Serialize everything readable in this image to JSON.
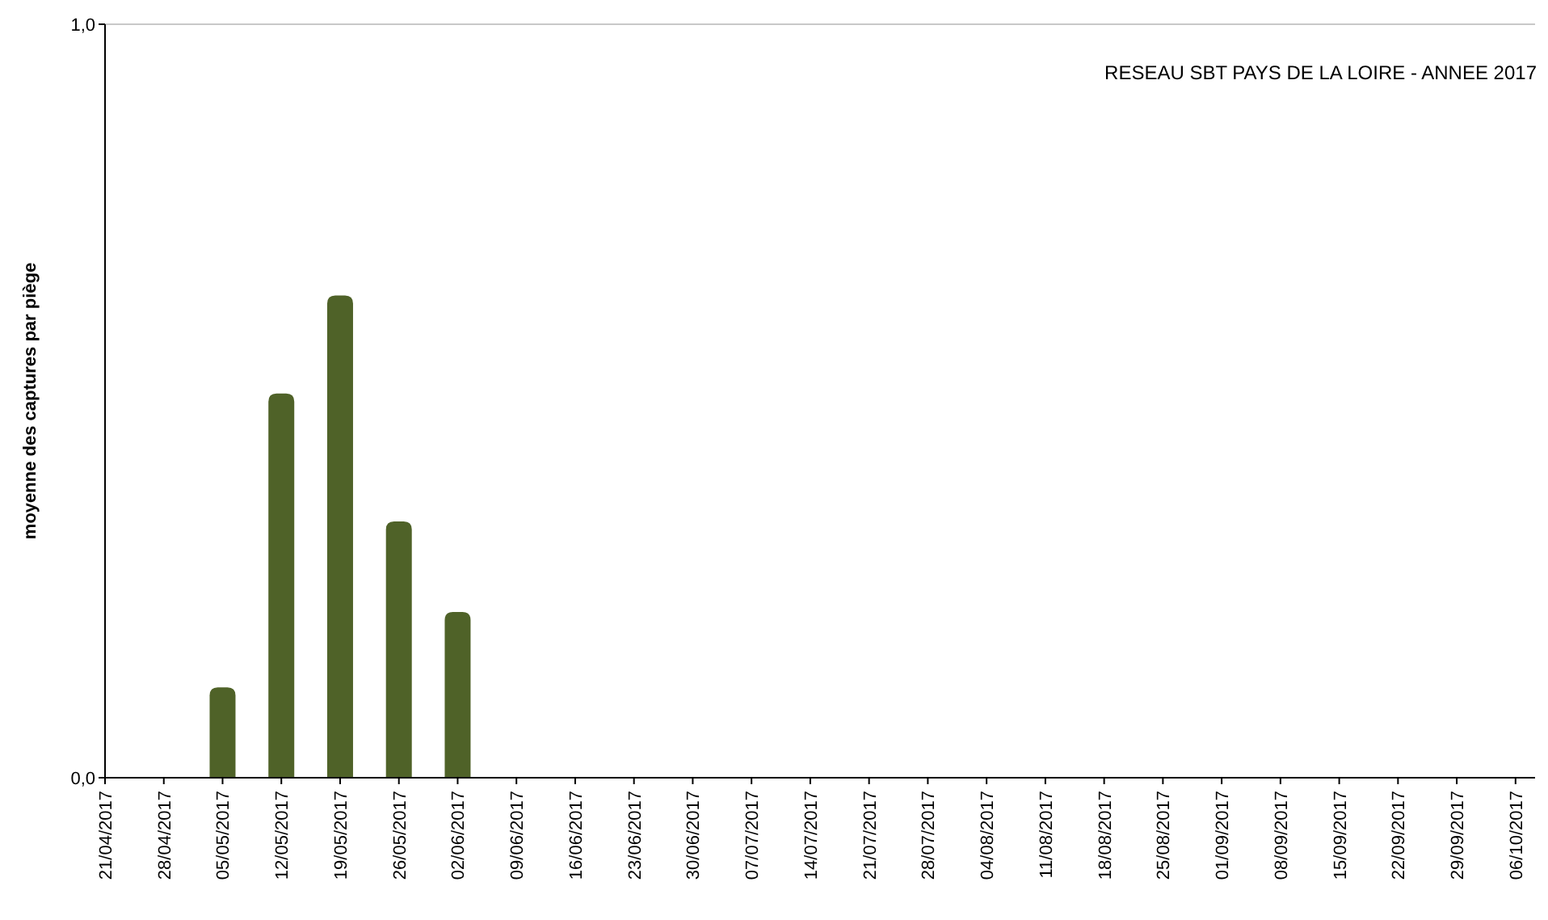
{
  "chart_data": {
    "type": "bar",
    "title": "RESEAU SBT PAYS DE LA LOIRE - ANNEE 2017",
    "ylabel": "moyenne des captures par piège",
    "categories": [
      "21/04/2017",
      "28/04/2017",
      "05/05/2017",
      "12/05/2017",
      "19/05/2017",
      "26/05/2017",
      "02/06/2017",
      "09/06/2017",
      "16/06/2017",
      "23/06/2017",
      "30/06/2017",
      "07/07/2017",
      "14/07/2017",
      "21/07/2017",
      "28/07/2017",
      "04/08/2017",
      "11/08/2017",
      "18/08/2017",
      "25/08/2017",
      "01/09/2017",
      "08/09/2017",
      "15/09/2017",
      "22/09/2017",
      "29/09/2017",
      "06/10/2017"
    ],
    "values": [
      0,
      0,
      0.12,
      0.51,
      0.64,
      0.34,
      0.22,
      0,
      0,
      0,
      0,
      0,
      0,
      0,
      0,
      0,
      0,
      0,
      0,
      0,
      0,
      0,
      0,
      0,
      0
    ],
    "color": "#4f6228",
    "ylim": [
      0,
      1
    ],
    "yticks": [
      {
        "value": 0,
        "label": "0,0"
      },
      {
        "value": 1,
        "label": "1,0"
      }
    ]
  }
}
